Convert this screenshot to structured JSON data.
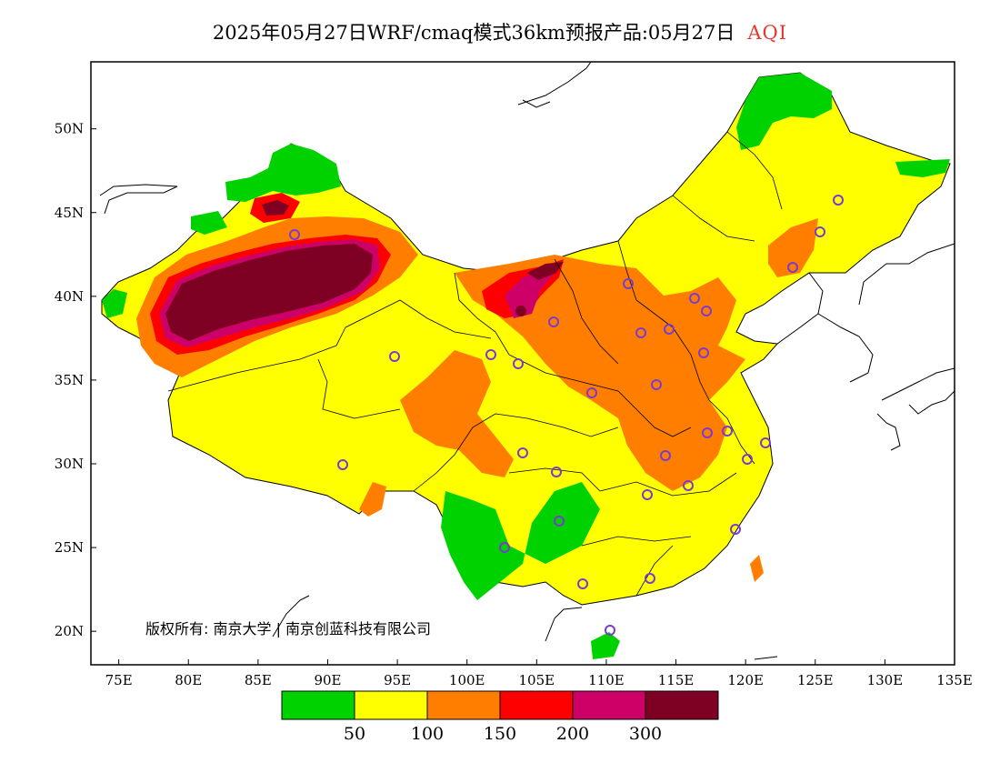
{
  "title": {
    "main": "2025年05月27日WRF/cmaq模式36km预报产品:05月27日",
    "variable": "AQI"
  },
  "map": {
    "lon_range": [
      73,
      135
    ],
    "lat_range": [
      18,
      54
    ],
    "x_ticks": [
      "75E",
      "80E",
      "85E",
      "90E",
      "95E",
      "100E",
      "105E",
      "110E",
      "115E",
      "120E",
      "125E",
      "130E",
      "135E"
    ],
    "y_ticks": [
      "50N",
      "45N",
      "40N",
      "35N",
      "30N",
      "25N",
      "20N"
    ],
    "copyright": "版权所有: 南京大学 | 南京创蓝科技有限公司"
  },
  "colorbar": {
    "colors": [
      "#00d200",
      "#ffff00",
      "#ff7e00",
      "#ff0000",
      "#cc0066",
      "#7e0023"
    ],
    "labels": [
      "50",
      "100",
      "150",
      "200",
      "300"
    ]
  }
}
